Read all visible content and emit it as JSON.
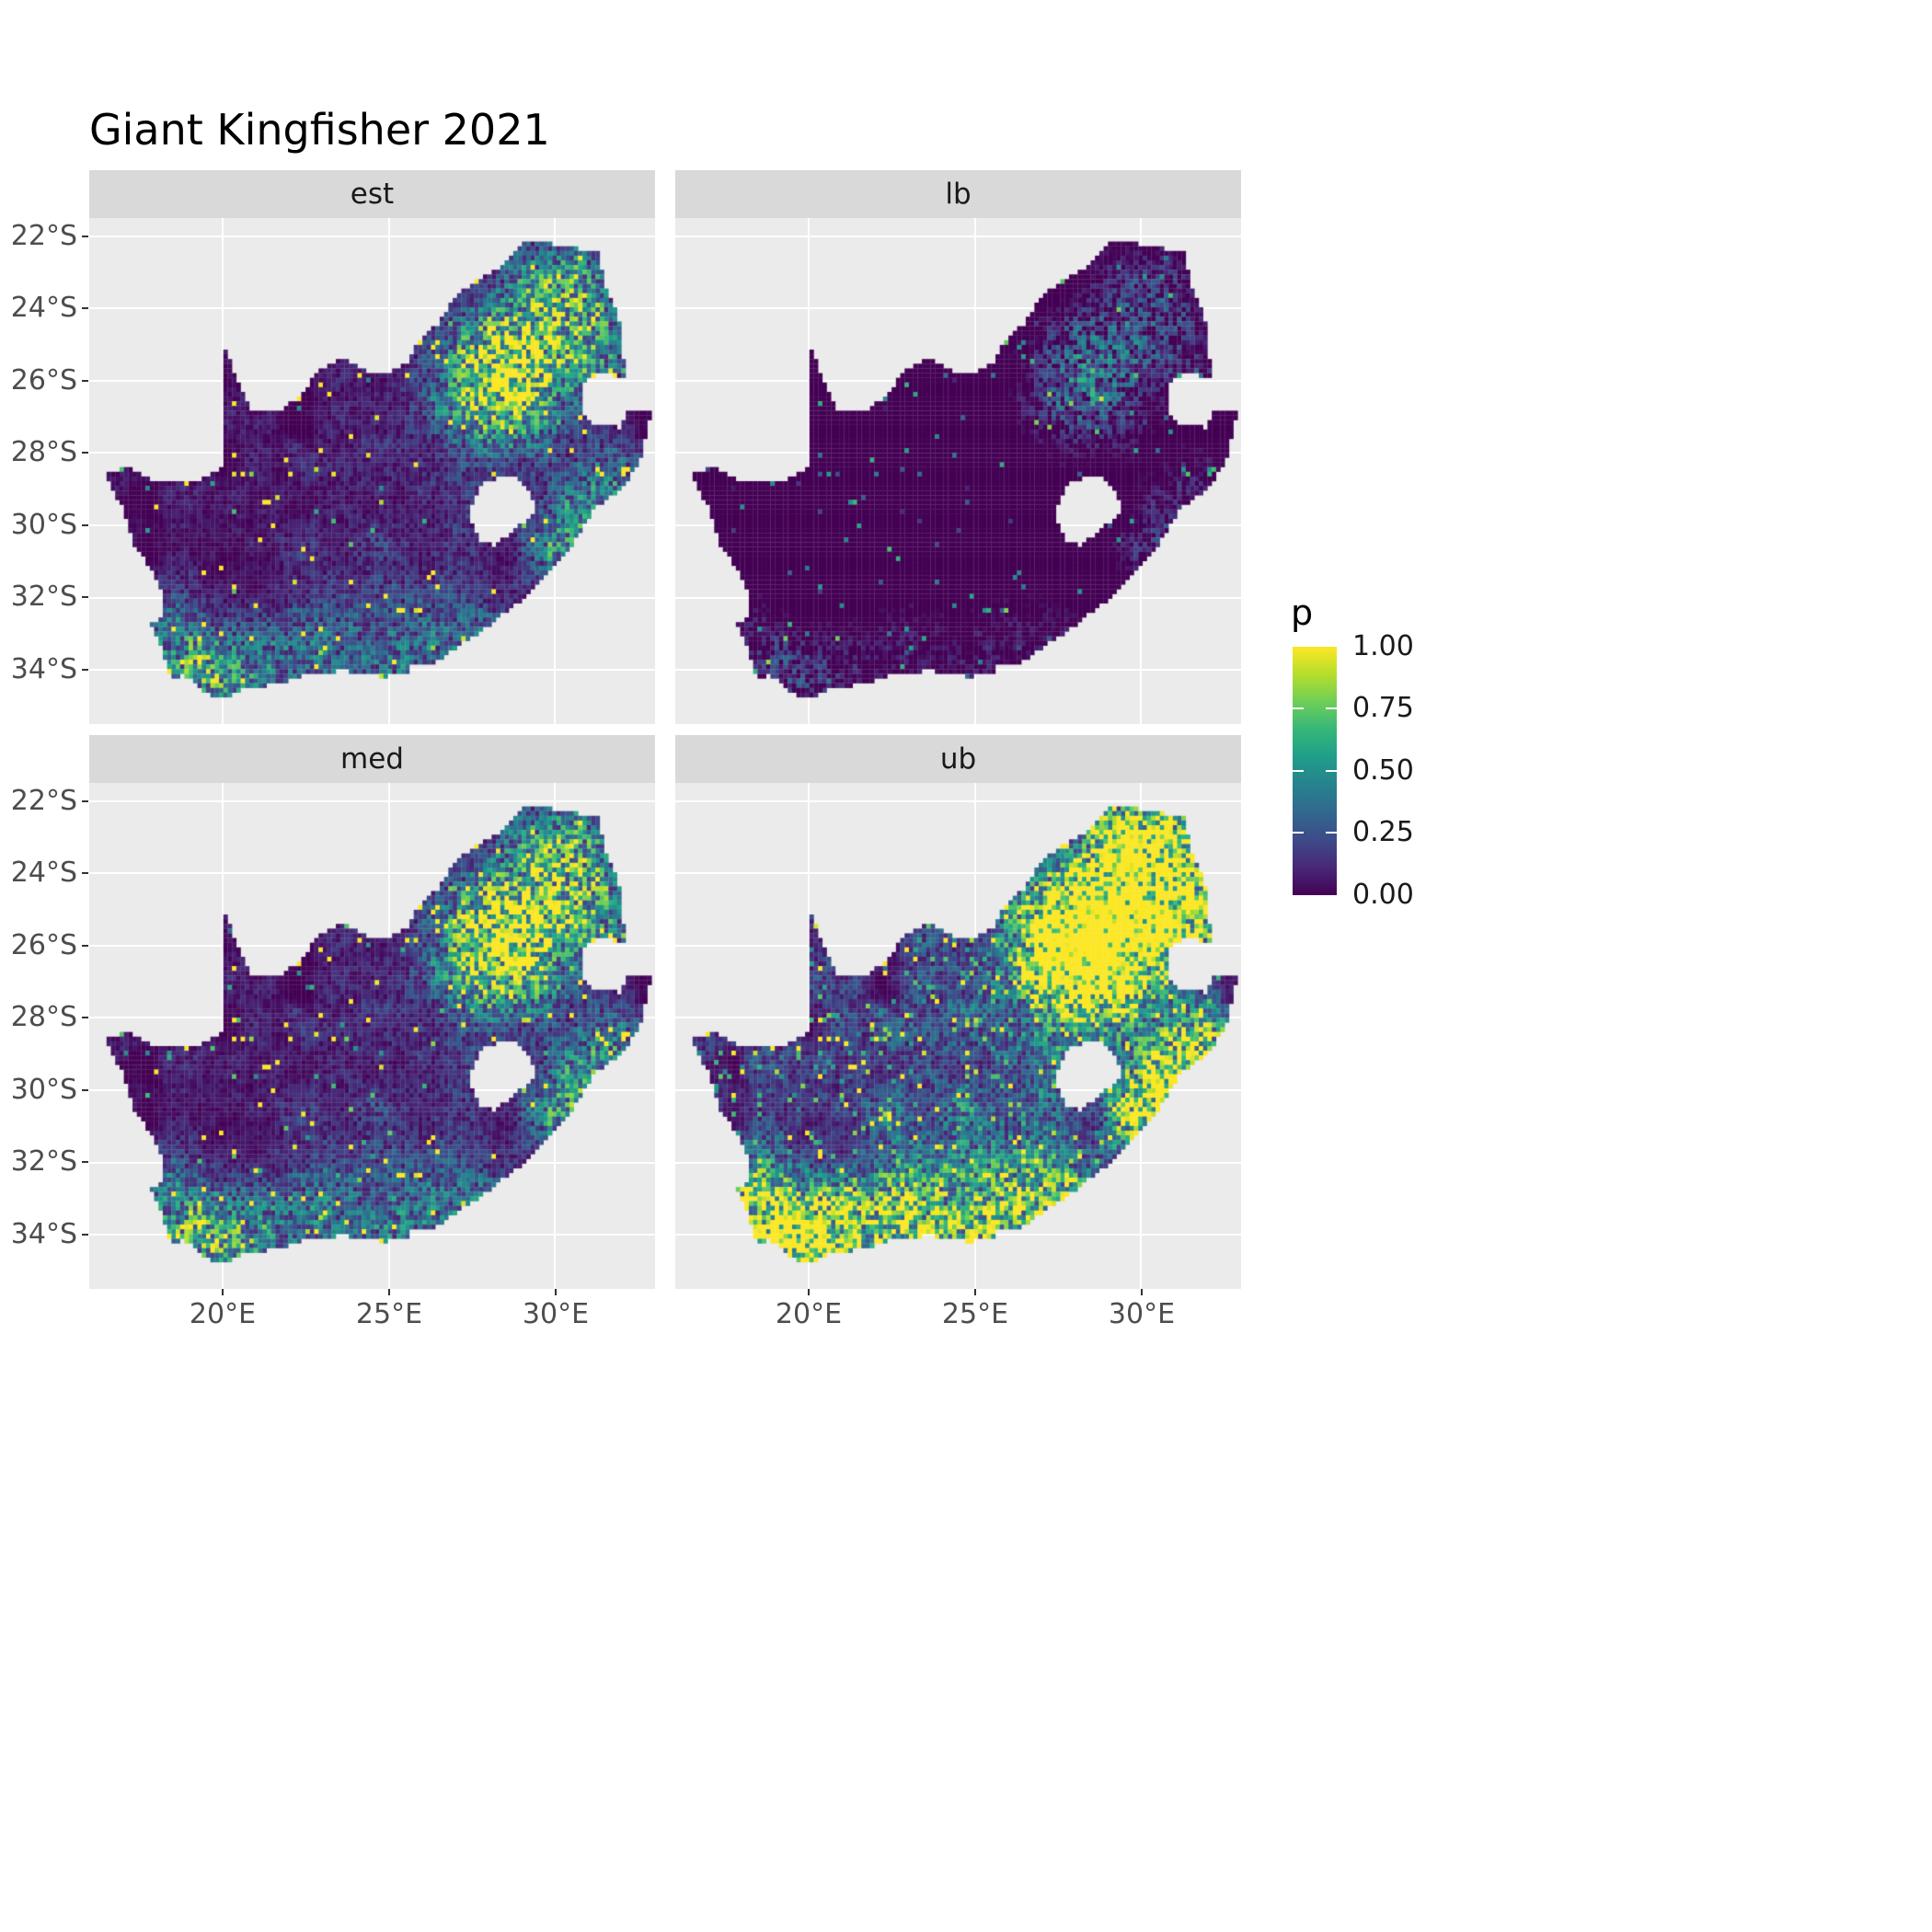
{
  "chart_data": {
    "type": "heatmap",
    "variant": "2x2 faceted raster probability map of South Africa (ggplot-style)",
    "title": "Giant Kingfisher 2021",
    "facets": [
      {
        "label": "est",
        "scale": 1.0,
        "offset": -0.03,
        "speckle": 0.0
      },
      {
        "label": "lb",
        "scale": 0.5,
        "offset": -0.17,
        "speckle": 0.0
      },
      {
        "label": "med",
        "scale": 1.08,
        "offset": -0.02,
        "speckle": 0.01
      },
      {
        "label": "ub",
        "scale": 2.1,
        "offset": 0.0,
        "speckle": 0.05
      }
    ],
    "x_ticks": [
      "20°E",
      "25°E",
      "30°E"
    ],
    "x_tick_lon": [
      20,
      25,
      30
    ],
    "y_ticks": [
      "22°S",
      "24°S",
      "26°S",
      "28°S",
      "30°S",
      "32°S",
      "34°S"
    ],
    "y_tick_lat": [
      -22,
      -24,
      -26,
      -28,
      -30,
      -32,
      -34
    ],
    "lon_range": [
      16,
      33
    ],
    "lat_range": [
      -35.5,
      -21.5
    ],
    "legend": {
      "title": "p",
      "labels": [
        "1.00",
        "0.75",
        "0.50",
        "0.25",
        "0.00"
      ],
      "values": [
        1.0,
        0.75,
        0.5,
        0.25,
        0.0
      ]
    },
    "colormap": {
      "name": "viridis",
      "stops": [
        "#440154",
        "#482878",
        "#3e4a89",
        "#31688e",
        "#26828e",
        "#1f9e89",
        "#35b779",
        "#6ece58",
        "#b5de2b",
        "#fde725"
      ]
    },
    "colors": {
      "panel_bg": "#ebebeb",
      "strip_bg": "#d9d9d9",
      "grid": "#ffffff",
      "axis_text": "#4d4d4d",
      "tick_mark": "#333333"
    },
    "map": {
      "outline": [
        [
          16.45,
          -28.6
        ],
        [
          17.2,
          -28.4
        ],
        [
          17.9,
          -28.76
        ],
        [
          18.6,
          -28.84
        ],
        [
          19.3,
          -28.72
        ],
        [
          19.98,
          -28.43
        ],
        [
          19.99,
          -24.78
        ],
        [
          20.3,
          -25.6
        ],
        [
          20.65,
          -26.4
        ],
        [
          20.85,
          -26.8
        ],
        [
          21.6,
          -26.86
        ],
        [
          22.1,
          -26.6
        ],
        [
          22.6,
          -26.1
        ],
        [
          22.9,
          -25.7
        ],
        [
          23.6,
          -25.35
        ],
        [
          24.3,
          -25.72
        ],
        [
          25.05,
          -25.72
        ],
        [
          25.6,
          -25.5
        ],
        [
          25.9,
          -24.9
        ],
        [
          26.45,
          -24.45
        ],
        [
          26.9,
          -23.75
        ],
        [
          27.6,
          -23.25
        ],
        [
          28.25,
          -22.9
        ],
        [
          29.05,
          -22.22
        ],
        [
          29.7,
          -22.16
        ],
        [
          30.3,
          -22.32
        ],
        [
          31.3,
          -22.4
        ],
        [
          31.55,
          -23.5
        ],
        [
          31.95,
          -24.35
        ],
        [
          32.05,
          -25.4
        ],
        [
          32.12,
          -25.98
        ],
        [
          31.4,
          -25.74
        ],
        [
          30.82,
          -26.08
        ],
        [
          30.8,
          -26.82
        ],
        [
          31.15,
          -27.2
        ],
        [
          31.96,
          -27.31
        ],
        [
          32.12,
          -26.86
        ],
        [
          32.9,
          -26.86
        ],
        [
          32.55,
          -28.25
        ],
        [
          32.0,
          -28.98
        ],
        [
          31.2,
          -29.5
        ],
        [
          30.55,
          -30.5
        ],
        [
          29.9,
          -31.2
        ],
        [
          29.15,
          -31.95
        ],
        [
          28.25,
          -32.6
        ],
        [
          27.35,
          -33.2
        ],
        [
          26.4,
          -33.78
        ],
        [
          25.65,
          -33.88
        ],
        [
          25.63,
          -34.05
        ],
        [
          24.8,
          -34.18
        ],
        [
          23.6,
          -34.02
        ],
        [
          22.5,
          -34.12
        ],
        [
          21.7,
          -34.42
        ],
        [
          20.7,
          -34.48
        ],
        [
          20.0,
          -34.82
        ],
        [
          19.35,
          -34.58
        ],
        [
          18.85,
          -34.12
        ],
        [
          18.45,
          -34.22
        ],
        [
          18.32,
          -33.88
        ],
        [
          18.1,
          -33.2
        ],
        [
          17.86,
          -32.72
        ],
        [
          18.28,
          -32.48
        ],
        [
          18.1,
          -31.62
        ],
        [
          17.35,
          -30.5
        ],
        [
          16.95,
          -29.4
        ]
      ],
      "lesotho_hole": [
        [
          27.55,
          -29.2
        ],
        [
          27.8,
          -28.88
        ],
        [
          28.25,
          -28.7
        ],
        [
          28.7,
          -28.62
        ],
        [
          29.12,
          -28.94
        ],
        [
          29.38,
          -29.28
        ],
        [
          29.45,
          -29.58
        ],
        [
          29.12,
          -29.88
        ],
        [
          28.68,
          -30.18
        ],
        [
          28.12,
          -30.55
        ],
        [
          27.75,
          -30.42
        ],
        [
          27.45,
          -29.88
        ]
      ]
    },
    "render": {
      "cell_deg": 0.13,
      "hotspots": [
        [
          28.1,
          -25.9,
          1.1,
          0.85
        ],
        [
          29.6,
          -24.2,
          1.4,
          0.45
        ],
        [
          31.0,
          -25.3,
          0.9,
          0.4
        ],
        [
          30.5,
          -23.2,
          1.1,
          0.28
        ],
        [
          31.9,
          -28.6,
          0.8,
          0.3
        ],
        [
          30.8,
          -29.9,
          0.9,
          0.4
        ],
        [
          30.1,
          -30.9,
          0.7,
          0.35
        ],
        [
          19.0,
          -33.8,
          0.8,
          0.5
        ],
        [
          18.4,
          -32.6,
          0.6,
          0.25
        ],
        [
          20.2,
          -34.4,
          1.0,
          0.4
        ],
        [
          22.8,
          -34.1,
          1.4,
          0.28
        ],
        [
          25.8,
          -33.8,
          0.9,
          0.3
        ],
        [
          27.5,
          -32.9,
          0.9,
          0.25
        ],
        [
          26.5,
          -29.5,
          1.8,
          0.1
        ],
        [
          23.5,
          -32.3,
          1.8,
          0.08
        ],
        [
          28.6,
          -26.9,
          1.2,
          0.3
        ]
      ]
    }
  }
}
